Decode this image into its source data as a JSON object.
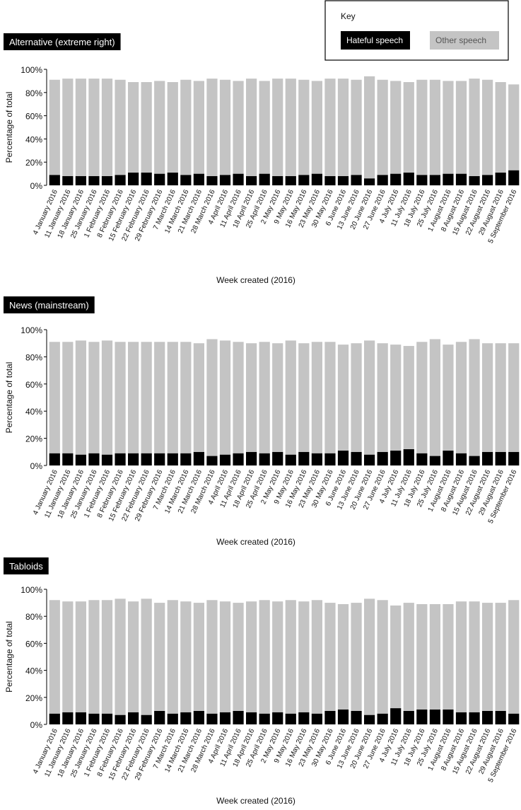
{
  "key": {
    "title": "Key"
  },
  "chart_data": [
    {
      "type": "bar",
      "stacked": true,
      "title": "Alternative (extreme right)",
      "xlabel": "Week created (2016)",
      "ylabel": "Percentage of total",
      "categories": [
        "4 January 2016",
        "11 January 2016",
        "18 January 2016",
        "25 January 2016",
        "1 February 2016",
        "8 February 2016",
        "15 February 2016",
        "22 February 2016",
        "29 February 2016",
        "7 March 2016",
        "14 March 2016",
        "21 March 2016",
        "28 March 2016",
        "4 April 2016",
        "11 April 2016",
        "18 April 2016",
        "25 April 2016",
        "2 May 2016",
        "9 May 2016",
        "16 May 2016",
        "23 May 2016",
        "30 May 2016",
        "6 June 2016",
        "13 June 2016",
        "20 June 2016",
        "27 June 2016",
        "4 July 2016",
        "11 July 2016",
        "18 July 2016",
        "25 July 2016",
        "1 August 2016",
        "8 August 2016",
        "15 August 2016",
        "22 August 2016",
        "29 August 2016",
        "5 September 2016"
      ],
      "series": [
        {
          "name": "Hateful speech",
          "color": "#000000",
          "values": [
            9,
            8,
            8,
            8,
            8,
            9,
            11,
            11,
            10,
            11,
            9,
            10,
            8,
            9,
            10,
            8,
            10,
            8,
            8,
            9,
            10,
            8,
            8,
            9,
            6,
            9,
            10,
            11,
            9,
            9,
            10,
            10,
            8,
            9,
            11,
            13
          ]
        },
        {
          "name": "Other speech",
          "color": "#c4c4c4",
          "values": [
            82,
            84,
            84,
            84,
            84,
            82,
            78,
            78,
            80,
            78,
            82,
            80,
            84,
            82,
            80,
            84,
            80,
            84,
            84,
            82,
            80,
            84,
            84,
            82,
            88,
            82,
            80,
            78,
            82,
            82,
            80,
            80,
            84,
            82,
            78,
            74
          ]
        }
      ],
      "ylim": [
        0,
        100
      ],
      "yticks": [
        {
          "value": 0,
          "label": "0%"
        },
        {
          "value": 20,
          "label": "20%"
        },
        {
          "value": 40,
          "label": "40%"
        },
        {
          "value": 60,
          "label": "60%"
        },
        {
          "value": 80,
          "label": "80%"
        },
        {
          "value": 100,
          "label": "100%"
        }
      ],
      "grid": false
    },
    {
      "type": "bar",
      "stacked": true,
      "title": "News (mainstream)",
      "xlabel": "Week created (2016)",
      "ylabel": "Percentage of total",
      "categories": [
        "4 January 2016",
        "11 January 2016",
        "18 January 2016",
        "25 January 2016",
        "1 February 2016",
        "8 February 2016",
        "15 February 2016",
        "22 February 2016",
        "29 February 2016",
        "7 March 2016",
        "14 March 2016",
        "21 March 2016",
        "28 March 2016",
        "4 April 2016",
        "11 April 2016",
        "18 April 2016",
        "25 April 2016",
        "2 May 2016",
        "9 May 2016",
        "16 May 2016",
        "23 May 2016",
        "30 May 2016",
        "6 June 2016",
        "13 June 2016",
        "20 June 2016",
        "27 June 2016",
        "4 July 2016",
        "11 July 2016",
        "18 July 2016",
        "25 July 2016",
        "1 August 2016",
        "8 August 2016",
        "15 August 2016",
        "22 August 2016",
        "29 August 2016",
        "5 September 2016"
      ],
      "series": [
        {
          "name": "Hateful speech",
          "color": "#000000",
          "values": [
            9,
            9,
            8,
            9,
            8,
            9,
            9,
            9,
            9,
            9,
            9,
            10,
            7,
            8,
            9,
            10,
            9,
            10,
            8,
            10,
            9,
            9,
            11,
            10,
            8,
            10,
            11,
            12,
            9,
            7,
            11,
            9,
            7,
            10,
            10,
            10
          ]
        },
        {
          "name": "Other speech",
          "color": "#c4c4c4",
          "values": [
            82,
            82,
            84,
            82,
            84,
            82,
            82,
            82,
            82,
            82,
            82,
            80,
            86,
            84,
            82,
            80,
            82,
            80,
            84,
            80,
            82,
            82,
            78,
            80,
            84,
            80,
            78,
            76,
            82,
            86,
            78,
            82,
            86,
            80,
            80,
            80
          ]
        }
      ],
      "ylim": [
        0,
        100
      ],
      "yticks": [
        {
          "value": 0,
          "label": "0%"
        },
        {
          "value": 20,
          "label": "20%"
        },
        {
          "value": 40,
          "label": "40%"
        },
        {
          "value": 60,
          "label": "60%"
        },
        {
          "value": 80,
          "label": "80%"
        },
        {
          "value": 100,
          "label": "100%"
        }
      ],
      "grid": false
    },
    {
      "type": "bar",
      "stacked": true,
      "title": "Tabloids",
      "xlabel": "Week created (2016)",
      "ylabel": "Percentage of total",
      "categories": [
        "4 January 2016",
        "11 January 2016",
        "18 January 2016",
        "25 January 2016",
        "1 February 2016",
        "8 February 2016",
        "15 February 2016",
        "22 February 2016",
        "29 February 2016",
        "7 March 2016",
        "14 March 2016",
        "21 March 2016",
        "28 March 2016",
        "4 April 2016",
        "11 April 2016",
        "18 April 2016",
        "25 April 2016",
        "2 May 2016",
        "9 May 2016",
        "16 May 2016",
        "23 May 2016",
        "30 May 2016",
        "6 June 2016",
        "13 June 2016",
        "20 June 2016",
        "27 June 2016",
        "4 July 2016",
        "11 July 2016",
        "18 July 2016",
        "25 July 2016",
        "1 August 2016",
        "8 August 2016",
        "15 August 2016",
        "22 August 2016",
        "29 August 2016",
        "5 September 2016"
      ],
      "series": [
        {
          "name": "Hateful speech",
          "color": "#000000",
          "values": [
            8,
            9,
            9,
            8,
            8,
            7,
            9,
            7,
            10,
            8,
            9,
            10,
            8,
            9,
            10,
            9,
            8,
            9,
            8,
            9,
            8,
            10,
            11,
            10,
            7,
            8,
            12,
            10,
            11,
            11,
            11,
            9,
            9,
            10,
            10,
            8
          ]
        },
        {
          "name": "Other speech",
          "color": "#c4c4c4",
          "values": [
            84,
            82,
            82,
            84,
            84,
            86,
            82,
            86,
            80,
            84,
            82,
            80,
            84,
            82,
            80,
            82,
            84,
            82,
            84,
            82,
            84,
            80,
            78,
            80,
            86,
            84,
            76,
            80,
            78,
            78,
            78,
            82,
            82,
            80,
            80,
            84
          ]
        }
      ],
      "ylim": [
        0,
        100
      ],
      "yticks": [
        {
          "value": 0,
          "label": "0%"
        },
        {
          "value": 20,
          "label": "20%"
        },
        {
          "value": 40,
          "label": "40%"
        },
        {
          "value": 60,
          "label": "60%"
        },
        {
          "value": 80,
          "label": "80%"
        },
        {
          "value": 100,
          "label": "100%"
        }
      ],
      "grid": false
    }
  ]
}
